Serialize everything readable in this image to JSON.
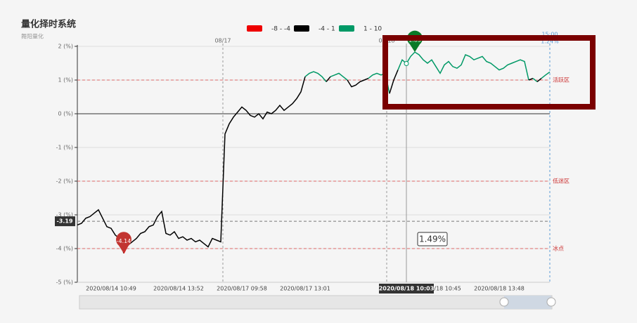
{
  "chart_data": {
    "type": "line",
    "title": "量化择时系统",
    "subtitle": "舞阳量化",
    "visual_map": [
      {
        "range": [
          -8,
          -4
        ],
        "color": "#ee0000",
        "label": "-8 - -4"
      },
      {
        "range": [
          -4,
          1
        ],
        "color": "#000000",
        "label": "-4 - 1"
      },
      {
        "range": [
          1,
          10
        ],
        "color": "#009966",
        "label": "1 - 10"
      }
    ],
    "categories": [
      null,
      null,
      null,
      null,
      null,
      null,
      null,
      null,
      "2020/08/14 10:49",
      null,
      null,
      null,
      null,
      null,
      null,
      null,
      null,
      null,
      null,
      null,
      null,
      null,
      null,
      null,
      "2020/08/14 13:52",
      null,
      null,
      null,
      null,
      null,
      null,
      null,
      null,
      null,
      null,
      null,
      null,
      null,
      null,
      "2020/08/17 09:58",
      null,
      null,
      null,
      null,
      null,
      null,
      null,
      null,
      null,
      null,
      null,
      null,
      null,
      null,
      "2020/08/17 13:01",
      null,
      null,
      null,
      null,
      null,
      null,
      null,
      null,
      null,
      null,
      null,
      null,
      null,
      null,
      null,
      null,
      null,
      null,
      null,
      null,
      null,
      null,
      null,
      null,
      null,
      null,
      null,
      null,
      null,
      null,
      "2020/08/18 10:45",
      null,
      null,
      null,
      null,
      null,
      null,
      null,
      null,
      null,
      null,
      null,
      null,
      null,
      null,
      "2020/08/18 13:48",
      null,
      null,
      null,
      null,
      null,
      null,
      null,
      null,
      null,
      null,
      null,
      null
    ],
    "series": [
      {
        "name": "择时指标",
        "values": [
          -3.3,
          -3.25,
          -3.1,
          -3.05,
          -2.95,
          -2.85,
          -3.1,
          -3.35,
          -3.4,
          -3.6,
          -3.7,
          -4.14,
          -3.9,
          -3.8,
          -3.7,
          -3.55,
          -3.5,
          -3.35,
          -3.3,
          -3.05,
          -2.9,
          -3.55,
          -3.6,
          -3.5,
          -3.7,
          -3.65,
          -3.75,
          -3.7,
          -3.8,
          -3.75,
          -3.85,
          -3.95,
          -3.7,
          -3.75,
          -3.8,
          -0.6,
          -0.3,
          -0.1,
          0.05,
          0.2,
          0.1,
          -0.05,
          -0.1,
          0.0,
          -0.15,
          0.05,
          0.0,
          0.1,
          0.25,
          0.1,
          0.2,
          0.3,
          0.45,
          0.65,
          1.1,
          1.2,
          1.25,
          1.2,
          1.1,
          0.95,
          1.1,
          1.15,
          1.2,
          1.1,
          1.0,
          0.8,
          0.85,
          0.95,
          1.0,
          1.05,
          1.15,
          1.2,
          1.15,
          1.2,
          0.6,
          1.0,
          1.3,
          1.6,
          1.49,
          1.7,
          1.83,
          1.75,
          1.6,
          1.5,
          1.6,
          1.4,
          1.2,
          1.45,
          1.55,
          1.4,
          1.35,
          1.45,
          1.75,
          1.7,
          1.6,
          1.65,
          1.7,
          1.55,
          1.5,
          1.4,
          1.3,
          1.35,
          1.45,
          1.5,
          1.55,
          1.6,
          1.55,
          1.0,
          1.05,
          0.95,
          1.05,
          1.15,
          1.24
        ]
      }
    ],
    "ylim": [
      -5,
      2
    ],
    "yticks": [
      {
        "value": 2,
        "label": "2 (%)"
      },
      {
        "value": 1,
        "label": "1 (%)"
      },
      {
        "value": 0,
        "label": "0 (%)"
      },
      {
        "value": -1,
        "label": "-1 (%)"
      },
      {
        "value": -2,
        "label": "-2 (%)"
      },
      {
        "value": -3,
        "label": "-3 (%)"
      },
      {
        "value": -4,
        "label": "-4 (%)"
      },
      {
        "value": -5,
        "label": "-5 (%)"
      }
    ],
    "grid": true,
    "mark_lines": [
      {
        "value": 1,
        "label": "活跃区"
      },
      {
        "value": -2,
        "label": "低迷区"
      },
      {
        "value": -4,
        "label": "冰点"
      }
    ],
    "day_labels": [
      "08/17",
      "08/18"
    ],
    "last_time": "15:00",
    "last_value_label": "1.24%",
    "crosshair_y": -3.19,
    "pointer": {
      "x_label": "2020/08/18 10:03",
      "value": 1.49,
      "value_label": "1.49%"
    },
    "max_label": "1.83"
  }
}
